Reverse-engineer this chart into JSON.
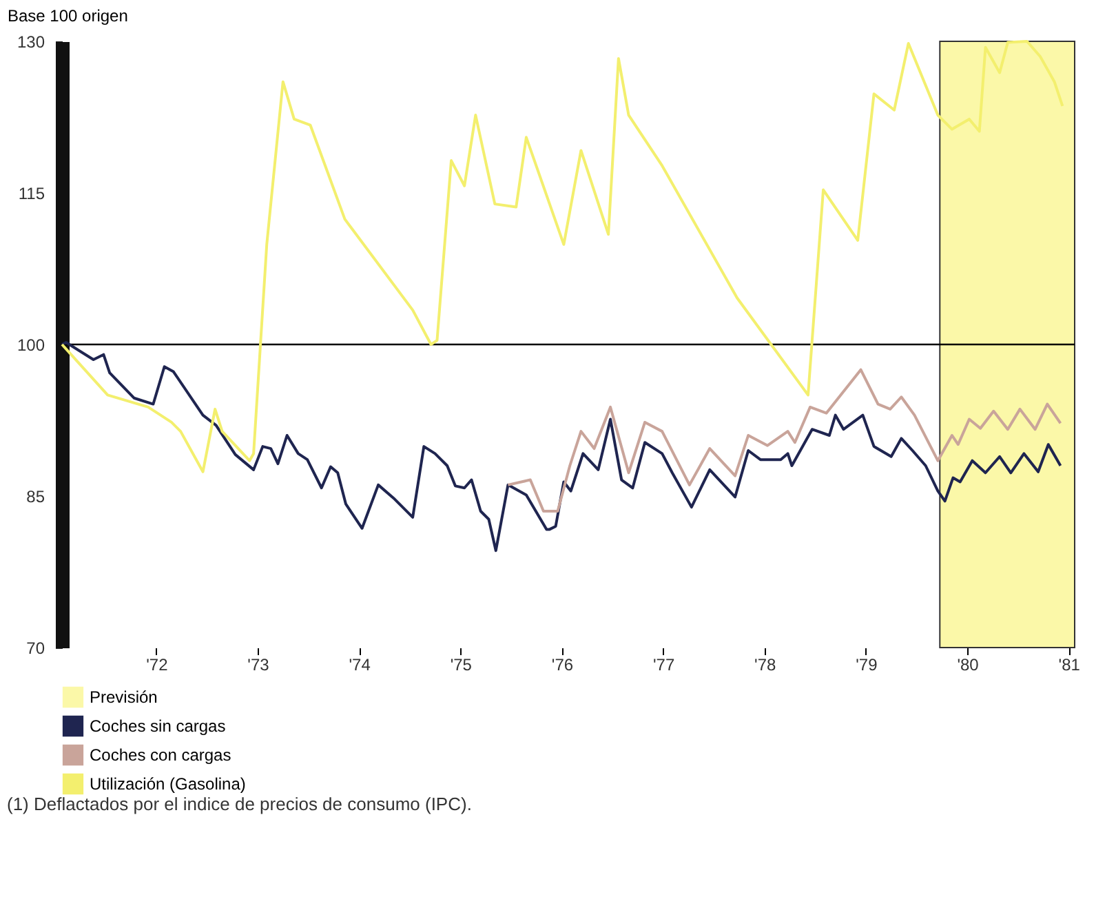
{
  "chart_data": {
    "type": "line",
    "ylabel": "Base 100 origen",
    "xlim": [
      1971.07,
      1981.06
    ],
    "ylim": [
      70,
      130
    ],
    "xticks": [
      {
        "value": 1972,
        "label": "'72"
      },
      {
        "value": 1973,
        "label": "'73"
      },
      {
        "value": 1974,
        "label": "'74"
      },
      {
        "value": 1975,
        "label": "'75"
      },
      {
        "value": 1976,
        "label": "'76"
      },
      {
        "value": 1977,
        "label": "'77"
      },
      {
        "value": 1978,
        "label": "'78"
      },
      {
        "value": 1979,
        "label": "'79"
      },
      {
        "value": 1980,
        "label": "'80"
      },
      {
        "value": 1981,
        "label": "'81"
      }
    ],
    "yticks": [
      70,
      85,
      100,
      115,
      130
    ],
    "grid": false,
    "legend": "bottom left",
    "line_style": "solid",
    "marker": "none",
    "bands": [
      {
        "axis": "x",
        "from": 1979.73,
        "to": 1981.06,
        "label": "Previsión",
        "color": "#fbf8a8"
      }
    ],
    "ref_lines": [
      {
        "axis": "y",
        "value": 100,
        "color": "#000000"
      }
    ],
    "series": [
      {
        "name": "Coches sin cargas",
        "color": "#1f2550",
        "x": [
          1971.07,
          1971.11,
          1971.38,
          1971.48,
          1971.54,
          1971.78,
          1971.97,
          1972.08,
          1972.17,
          1972.46,
          1972.59,
          1972.78,
          1972.96,
          1973.05,
          1973.13,
          1973.2,
          1973.29,
          1973.4,
          1973.49,
          1973.63,
          1973.72,
          1973.79,
          1973.87,
          1974.03,
          1974.19,
          1974.34,
          1974.53,
          1974.64,
          1974.75,
          1974.87,
          1974.95,
          1975.04,
          1975.11,
          1975.2,
          1975.28,
          1975.35,
          1975.47,
          1975.65,
          1975.85,
          1975.88,
          1975.94,
          1976.02,
          1976.09,
          1976.21,
          1976.36,
          1976.48,
          1976.59,
          1976.7,
          1976.82,
          1976.99,
          1977.09,
          1977.28,
          1977.46,
          1977.71,
          1977.84,
          1977.96,
          1978.16,
          1978.23,
          1978.27,
          1978.47,
          1978.64,
          1978.7,
          1978.78,
          1978.97,
          1979.08,
          1979.25,
          1979.35,
          1979.46,
          1979.59,
          1979.71,
          1979.78,
          1979.86,
          1979.93,
          1980.05,
          1980.18,
          1980.32,
          1980.43,
          1980.56,
          1980.7,
          1980.8,
          1980.92
        ],
        "values": [
          100,
          100.2,
          98.5,
          99,
          97.2,
          94.7,
          94.1,
          97.8,
          97.3,
          93,
          92,
          89.1,
          87.6,
          89.9,
          89.7,
          88.2,
          91,
          89.2,
          88.6,
          85.8,
          87.9,
          87.3,
          84.2,
          81.8,
          86.1,
          84.8,
          82.9,
          89.9,
          89.2,
          88,
          86,
          85.8,
          86.6,
          83.5,
          82.7,
          79.6,
          86.1,
          85.1,
          81.7,
          81.7,
          82,
          86.4,
          85.5,
          89.2,
          87.6,
          92.6,
          86.6,
          85.8,
          90.3,
          89.2,
          87.3,
          83.9,
          87.6,
          84.9,
          89.5,
          88.6,
          88.6,
          89.2,
          88,
          91.6,
          91,
          93,
          91.6,
          93,
          89.9,
          88.9,
          90.7,
          89.5,
          88,
          85.5,
          84.5,
          86.8,
          86.4,
          88.5,
          87.3,
          88.9,
          87.3,
          89.2,
          87.4,
          90.1,
          88
        ]
      },
      {
        "name": "Coches con cargas",
        "color": "#c9a49a",
        "x": [
          1975.47,
          1975.69,
          1975.82,
          1975.96,
          1976.08,
          1976.19,
          1976.32,
          1976.48,
          1976.66,
          1976.82,
          1976.99,
          1977.26,
          1977.46,
          1977.71,
          1977.84,
          1978.03,
          1978.23,
          1978.3,
          1978.45,
          1978.61,
          1978.95,
          1979.12,
          1979.24,
          1979.35,
          1979.48,
          1979.71,
          1979.85,
          1979.91,
          1980.02,
          1980.13,
          1980.26,
          1980.4,
          1980.52,
          1980.67,
          1980.79,
          1980.92
        ],
        "values": [
          86.1,
          86.6,
          83.5,
          83.5,
          88,
          91.4,
          89.7,
          93.8,
          87.3,
          92.3,
          91.4,
          86.1,
          89.7,
          87,
          91,
          90,
          91.4,
          90.3,
          93.8,
          93.2,
          97.5,
          94.1,
          93.6,
          94.8,
          93,
          88.5,
          91,
          90.1,
          92.6,
          91.7,
          93.4,
          91.6,
          93.6,
          91.6,
          94.1,
          92.2
        ]
      },
      {
        "name": "Utilización (Gasolina)",
        "color": "#f3ef6e",
        "x": [
          1971.07,
          1971.52,
          1971.92,
          1972.15,
          1972.24,
          1972.46,
          1972.58,
          1972.65,
          1972.92,
          1972.96,
          1973.09,
          1973.25,
          1973.36,
          1973.52,
          1973.86,
          1974.53,
          1974.71,
          1974.77,
          1974.91,
          1975.04,
          1975.15,
          1975.34,
          1975.55,
          1975.65,
          1976.02,
          1976.19,
          1976.46,
          1976.56,
          1976.66,
          1976.99,
          1977.73,
          1978.43,
          1978.58,
          1978.92,
          1979.08,
          1979.28,
          1979.42,
          1979.71,
          1979.85,
          1980.02,
          1980.12,
          1980.18,
          1980.32,
          1980.4,
          1980.59,
          1980.72,
          1980.86,
          1980.94
        ],
        "values": [
          100,
          95,
          93.8,
          92.3,
          91.4,
          87.4,
          93.6,
          91.4,
          88.5,
          89.2,
          109.9,
          126,
          122.3,
          121.7,
          112.4,
          103.4,
          100,
          100.4,
          118.2,
          115.7,
          122.7,
          113.9,
          113.6,
          120.5,
          109.9,
          119.2,
          110.9,
          128.3,
          122.7,
          117.7,
          104.6,
          95,
          115.3,
          110.3,
          124.8,
          123.2,
          129.8,
          122.7,
          121.3,
          122.3,
          121.1,
          129.4,
          126.9,
          129.9,
          130,
          128.5,
          126,
          123.6
        ]
      }
    ],
    "annotations": [
      "(1)   Deflactados por el indice de precios de consumo (IPC)."
    ]
  }
}
